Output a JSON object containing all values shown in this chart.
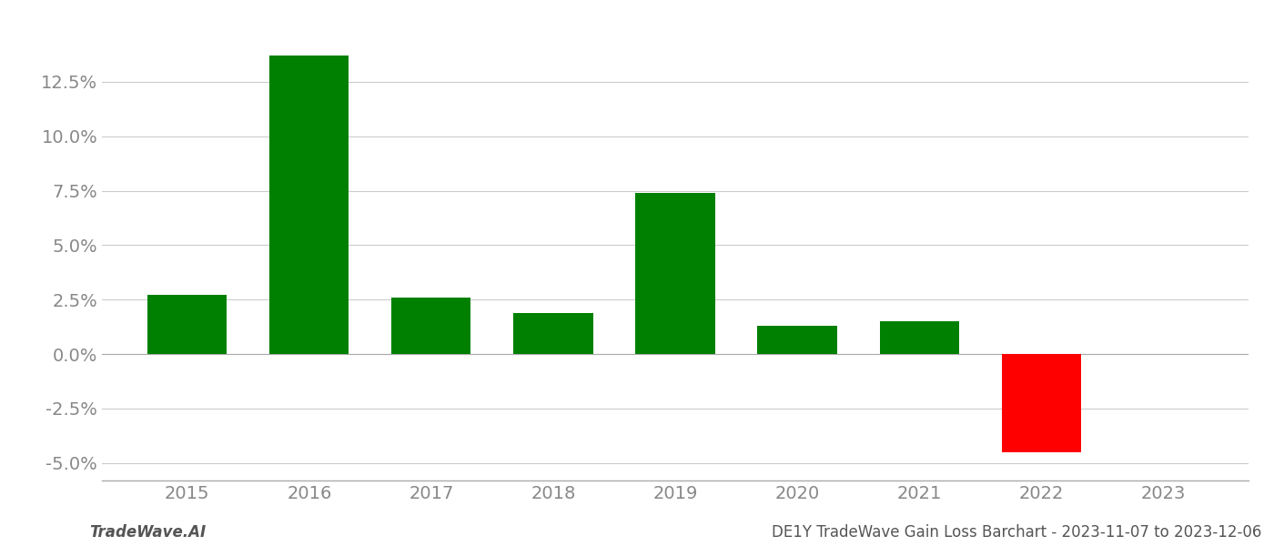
{
  "years": [
    2015,
    2016,
    2017,
    2018,
    2019,
    2020,
    2021,
    2022,
    2023
  ],
  "values": [
    0.027,
    0.137,
    0.026,
    0.019,
    0.074,
    0.013,
    0.015,
    -0.045,
    null
  ],
  "bar_colors": [
    "#008000",
    "#008000",
    "#008000",
    "#008000",
    "#008000",
    "#008000",
    "#008000",
    "#ff0000",
    null
  ],
  "ylim": [
    -0.058,
    0.155
  ],
  "yticks": [
    -0.05,
    -0.025,
    0.0,
    0.025,
    0.05,
    0.075,
    0.1,
    0.125
  ],
  "background_color": "#ffffff",
  "grid_color": "#cccccc",
  "bar_width": 0.65,
  "footer_left": "TradeWave.AI",
  "footer_right": "DE1Y TradeWave Gain Loss Barchart - 2023-11-07 to 2023-12-06",
  "axis_label_fontsize": 14,
  "footer_fontsize": 12,
  "tick_color": "#888888",
  "spine_color": "#aaaaaa"
}
